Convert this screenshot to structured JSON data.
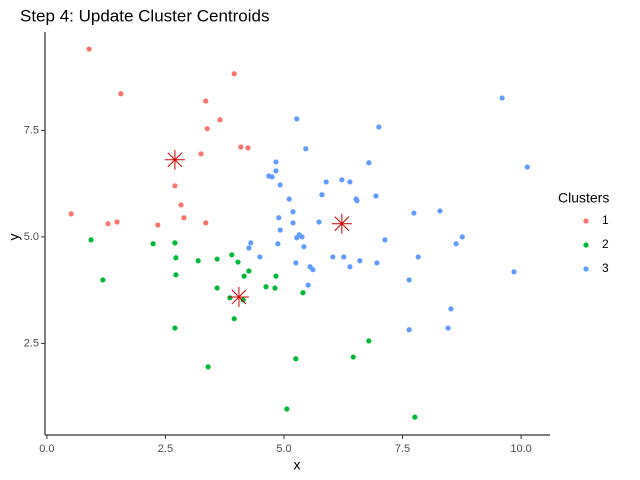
{
  "chart_data": {
    "type": "scatter",
    "title": "Step 4: Update Cluster Centroids",
    "x_label": "x",
    "y_label": "y",
    "legend_title": "Clusters",
    "legend_position": "right",
    "grid": false,
    "xlim": [
      -0.04,
      10.61
    ],
    "ylim": [
      0.35,
      9.81
    ],
    "xticks": [
      {
        "value": 0,
        "label": "0.0"
      },
      2.5,
      {
        "value": 5,
        "label": "5.0"
      },
      7.5,
      {
        "value": 10,
        "label": "10.0"
      }
    ],
    "yticks": [
      2.5,
      {
        "value": 5,
        "label": "5.0"
      },
      7.5
    ],
    "series": [
      {
        "name": "1",
        "color": "#F8766D",
        "x": [
          0.89,
          1.56,
          3.95,
          3.35,
          3.65,
          3.38,
          4.09,
          4.24,
          3.25,
          2.7,
          2.83,
          2.89,
          0.51,
          1.29,
          1.48,
          2.34,
          3.35
        ],
        "y": [
          9.41,
          8.36,
          8.83,
          8.19,
          7.75,
          7.54,
          7.11,
          7.09,
          6.95,
          6.2,
          5.75,
          5.45,
          5.54,
          5.31,
          5.35,
          5.28,
          5.33
        ]
      },
      {
        "name": "2",
        "color": "#00BA38",
        "x": [
          0.93,
          2.24,
          2.7,
          2.72,
          2.72,
          1.18,
          3.19,
          3.59,
          3.9,
          4.03,
          4.16,
          4.26,
          3.59,
          3.86,
          4.14,
          4.62,
          4.81,
          4.83,
          5.4,
          3.95,
          2.7,
          6.79,
          6.46,
          5.25,
          3.4,
          5.06,
          7.76
        ],
        "y": [
          4.93,
          4.84,
          4.86,
          4.51,
          4.11,
          3.99,
          4.44,
          4.48,
          4.58,
          4.41,
          4.08,
          4.2,
          3.8,
          3.57,
          3.52,
          3.83,
          3.8,
          4.08,
          3.69,
          3.08,
          2.86,
          2.56,
          2.18,
          2.14,
          1.95,
          0.96,
          0.77
        ]
      },
      {
        "name": "3",
        "color": "#619CFF",
        "x": [
          9.6,
          7.0,
          5.27,
          5.46,
          4.83,
          4.83,
          6.79,
          4.68,
          4.75,
          4.92,
          5.11,
          5.89,
          6.22,
          6.39,
          10.13,
          6.94,
          6.52,
          6.54,
          5.8,
          5.19,
          4.89,
          5.19,
          7.74,
          8.29,
          5.74,
          4.92,
          5.32,
          5.38,
          5.27,
          4.87,
          4.3,
          4.26,
          4.49,
          5.42,
          5.55,
          5.61,
          5.25,
          6.03,
          6.26,
          6.39,
          7.13,
          6.96,
          6.6,
          7.83,
          8.63,
          8.76,
          7.64,
          9.85,
          5.51,
          8.52,
          8.46,
          7.64
        ],
        "y": [
          8.26,
          7.58,
          7.77,
          7.07,
          6.76,
          6.55,
          6.74,
          6.43,
          6.41,
          6.22,
          5.89,
          6.29,
          6.34,
          6.29,
          6.64,
          5.96,
          5.89,
          5.85,
          5.99,
          5.59,
          5.45,
          5.33,
          5.56,
          5.61,
          5.35,
          5.16,
          5.05,
          5.0,
          4.98,
          4.84,
          4.86,
          4.74,
          4.53,
          4.77,
          4.3,
          4.23,
          4.39,
          4.53,
          4.53,
          4.3,
          4.93,
          4.39,
          4.44,
          4.53,
          4.84,
          5.0,
          3.99,
          4.18,
          3.87,
          3.31,
          2.86,
          2.82
        ]
      }
    ],
    "centroids": {
      "color": "#CC0000",
      "x": [
        2.7,
        4.05,
        6.22
      ],
      "y": [
        6.81,
        3.59,
        5.31
      ]
    }
  }
}
